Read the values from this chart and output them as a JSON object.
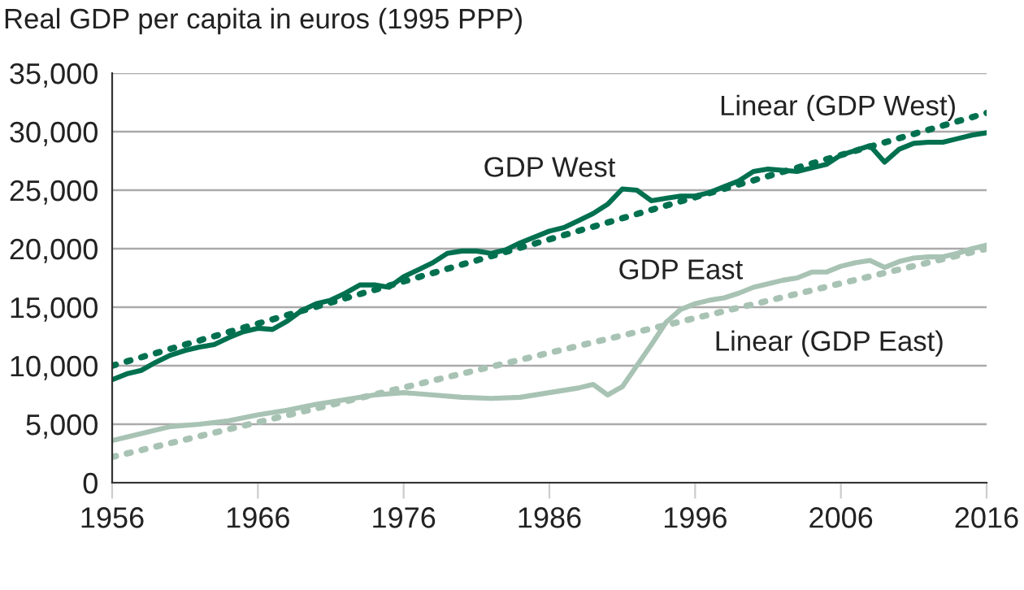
{
  "chart_data": {
    "type": "line",
    "title": "Real GDP per capita in euros (1995 PPP)",
    "xlim": [
      1956,
      2016
    ],
    "xticks": [
      1956,
      1966,
      1976,
      1986,
      1996,
      2006,
      2016
    ],
    "ylim": [
      0,
      35000
    ],
    "yticks": [
      0,
      {
        "value": 5000,
        "label": "5,000"
      },
      {
        "value": 10000,
        "label": "10,000"
      },
      {
        "value": 15000,
        "label": "15,000"
      },
      {
        "value": 20000,
        "label": "20,000"
      },
      {
        "value": 25000,
        "label": "25,000"
      },
      {
        "value": 30000,
        "label": "30,000"
      },
      {
        "value": 35000,
        "label": "35,000"
      }
    ],
    "grid": "y",
    "legend": false,
    "marker": "none",
    "series": [
      {
        "name": "GDP West",
        "color": "#00704f",
        "line_style": "solid",
        "x": [
          1956,
          1957,
          1958,
          1959,
          1960,
          1961,
          1962,
          1963,
          1964,
          1965,
          1966,
          1967,
          1968,
          1969,
          1970,
          1971,
          1972,
          1973,
          1974,
          1975,
          1976,
          1977,
          1978,
          1979,
          1980,
          1981,
          1982,
          1983,
          1984,
          1985,
          1986,
          1987,
          1988,
          1989,
          1990,
          1991,
          1992,
          1993,
          1994,
          1995,
          1996,
          1997,
          1998,
          1999,
          2000,
          2001,
          2002,
          2003,
          2004,
          2005,
          2006,
          2007,
          2008,
          2009,
          2010,
          2011,
          2012,
          2013,
          2014,
          2015,
          2016
        ],
        "values": [
          8800,
          9300,
          9600,
          10300,
          10900,
          11300,
          11600,
          11800,
          12400,
          12900,
          13200,
          13100,
          13800,
          14700,
          15300,
          15600,
          16200,
          16900,
          16900,
          16700,
          17600,
          18200,
          18800,
          19600,
          19800,
          19800,
          19600,
          19900,
          20500,
          21000,
          21500,
          21800,
          22400,
          23000,
          23800,
          25100,
          25000,
          24100,
          24300,
          24500,
          24500,
          24800,
          25300,
          25800,
          26600,
          26800,
          26700,
          26600,
          26900,
          27200,
          28000,
          28400,
          28800,
          27400,
          28500,
          29000,
          29100,
          29100,
          29400,
          29700,
          29900
        ]
      },
      {
        "name": "Linear (GDP West)",
        "color": "#00704f",
        "line_style": "dotted",
        "x": [
          1956,
          2016
        ],
        "values": [
          10000,
          31600
        ]
      },
      {
        "name": "GDP East",
        "color": "#a8c3b4",
        "line_style": "solid",
        "x": [
          1956,
          1958,
          1960,
          1962,
          1964,
          1966,
          1968,
          1970,
          1972,
          1974,
          1976,
          1978,
          1980,
          1982,
          1984,
          1986,
          1988,
          1989,
          1990,
          1991,
          1992,
          1993,
          1994,
          1995,
          1996,
          1997,
          1998,
          1999,
          2000,
          2001,
          2002,
          2003,
          2004,
          2005,
          2006,
          2007,
          2008,
          2009,
          2010,
          2011,
          2012,
          2013,
          2014,
          2015,
          2016
        ],
        "values": [
          3600,
          4200,
          4800,
          5000,
          5300,
          5800,
          6200,
          6700,
          7100,
          7500,
          7700,
          7500,
          7300,
          7200,
          7300,
          7700,
          8100,
          8400,
          7500,
          8200,
          10000,
          11800,
          13700,
          14800,
          15300,
          15600,
          15800,
          16200,
          16700,
          17000,
          17300,
          17500,
          18000,
          18000,
          18500,
          18800,
          19000,
          18400,
          18900,
          19200,
          19300,
          19300,
          19600,
          20000,
          20300
        ]
      },
      {
        "name": "Linear (GDP East)",
        "color": "#a8c3b4",
        "line_style": "dotted",
        "x": [
          1956,
          2016
        ],
        "values": [
          2200,
          20000
        ]
      }
    ]
  }
}
